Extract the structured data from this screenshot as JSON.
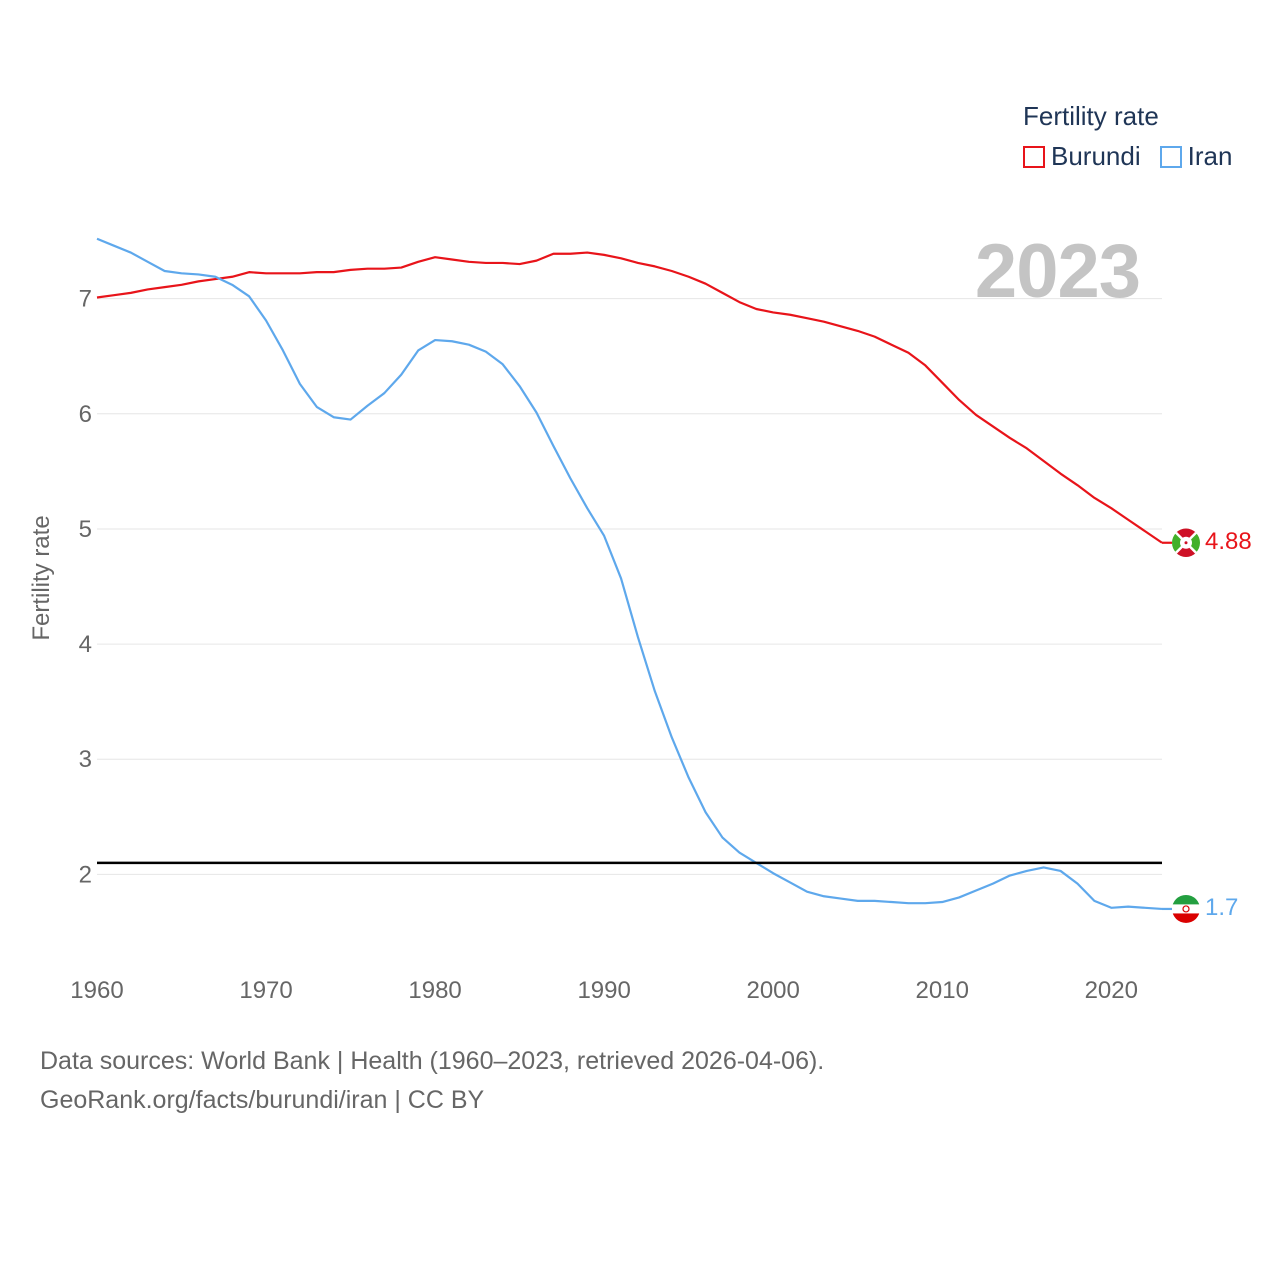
{
  "legend": {
    "title": "Fertility rate",
    "items": [
      {
        "name": "Burundi",
        "color": "#e8141a"
      },
      {
        "name": "Iran",
        "color": "#5ea8ec"
      }
    ]
  },
  "year_label": "2023",
  "end_labels": {
    "burundi": "4.88",
    "iran": "1.7"
  },
  "source": {
    "line1": "Data sources: World Bank | Health (1960–2023, retrieved 2026-04-06).",
    "line2": "GeoRank.org/facts/burundi/iran | CC BY"
  },
  "chart_data": {
    "type": "line",
    "title": "Fertility rate",
    "ylabel": "Fertility rate",
    "xlabel": "",
    "xlim": [
      1960,
      2023
    ],
    "ylim": [
      1.3,
      7.9
    ],
    "yticks": [
      2,
      3,
      4,
      5,
      6,
      7
    ],
    "xticks": [
      1960,
      1970,
      1980,
      1990,
      2000,
      2010,
      2020
    ],
    "reference_line": {
      "y": 2.1,
      "color": "#000000"
    },
    "x": [
      1960,
      1961,
      1962,
      1963,
      1964,
      1965,
      1966,
      1967,
      1968,
      1969,
      1970,
      1971,
      1972,
      1973,
      1974,
      1975,
      1976,
      1977,
      1978,
      1979,
      1980,
      1981,
      1982,
      1983,
      1984,
      1985,
      1986,
      1987,
      1988,
      1989,
      1990,
      1991,
      1992,
      1993,
      1994,
      1995,
      1996,
      1997,
      1998,
      1999,
      2000,
      2001,
      2002,
      2003,
      2004,
      2005,
      2006,
      2007,
      2008,
      2009,
      2010,
      2011,
      2012,
      2013,
      2014,
      2015,
      2016,
      2017,
      2018,
      2019,
      2020,
      2021,
      2022,
      2023
    ],
    "series": [
      {
        "name": "Burundi",
        "color": "#e8141a",
        "values": [
          7.01,
          7.03,
          7.05,
          7.08,
          7.1,
          7.12,
          7.15,
          7.17,
          7.19,
          7.23,
          7.22,
          7.22,
          7.22,
          7.23,
          7.23,
          7.25,
          7.26,
          7.26,
          7.27,
          7.32,
          7.36,
          7.34,
          7.32,
          7.31,
          7.31,
          7.3,
          7.33,
          7.39,
          7.39,
          7.4,
          7.38,
          7.35,
          7.31,
          7.28,
          7.24,
          7.19,
          7.13,
          7.05,
          6.97,
          6.91,
          6.88,
          6.86,
          6.83,
          6.8,
          6.76,
          6.72,
          6.67,
          6.6,
          6.53,
          6.42,
          6.27,
          6.12,
          5.99,
          5.89,
          5.79,
          5.7,
          5.59,
          5.48,
          5.38,
          5.27,
          5.18,
          5.08,
          4.98,
          4.88
        ]
      },
      {
        "name": "Iran",
        "color": "#5ea8ec",
        "values": [
          7.52,
          7.46,
          7.4,
          7.32,
          7.24,
          7.22,
          7.21,
          7.19,
          7.12,
          7.02,
          6.81,
          6.55,
          6.26,
          6.06,
          5.97,
          5.95,
          6.07,
          6.18,
          6.34,
          6.55,
          6.64,
          6.63,
          6.6,
          6.54,
          6.43,
          6.24,
          6.01,
          5.72,
          5.44,
          5.18,
          4.94,
          4.57,
          4.06,
          3.59,
          3.19,
          2.84,
          2.54,
          2.32,
          2.19,
          2.1,
          2.01,
          1.93,
          1.85,
          1.81,
          1.79,
          1.77,
          1.77,
          1.76,
          1.75,
          1.75,
          1.76,
          1.8,
          1.86,
          1.92,
          1.99,
          2.03,
          2.06,
          2.03,
          1.92,
          1.77,
          1.71,
          1.72,
          1.71,
          1.7
        ]
      }
    ]
  }
}
